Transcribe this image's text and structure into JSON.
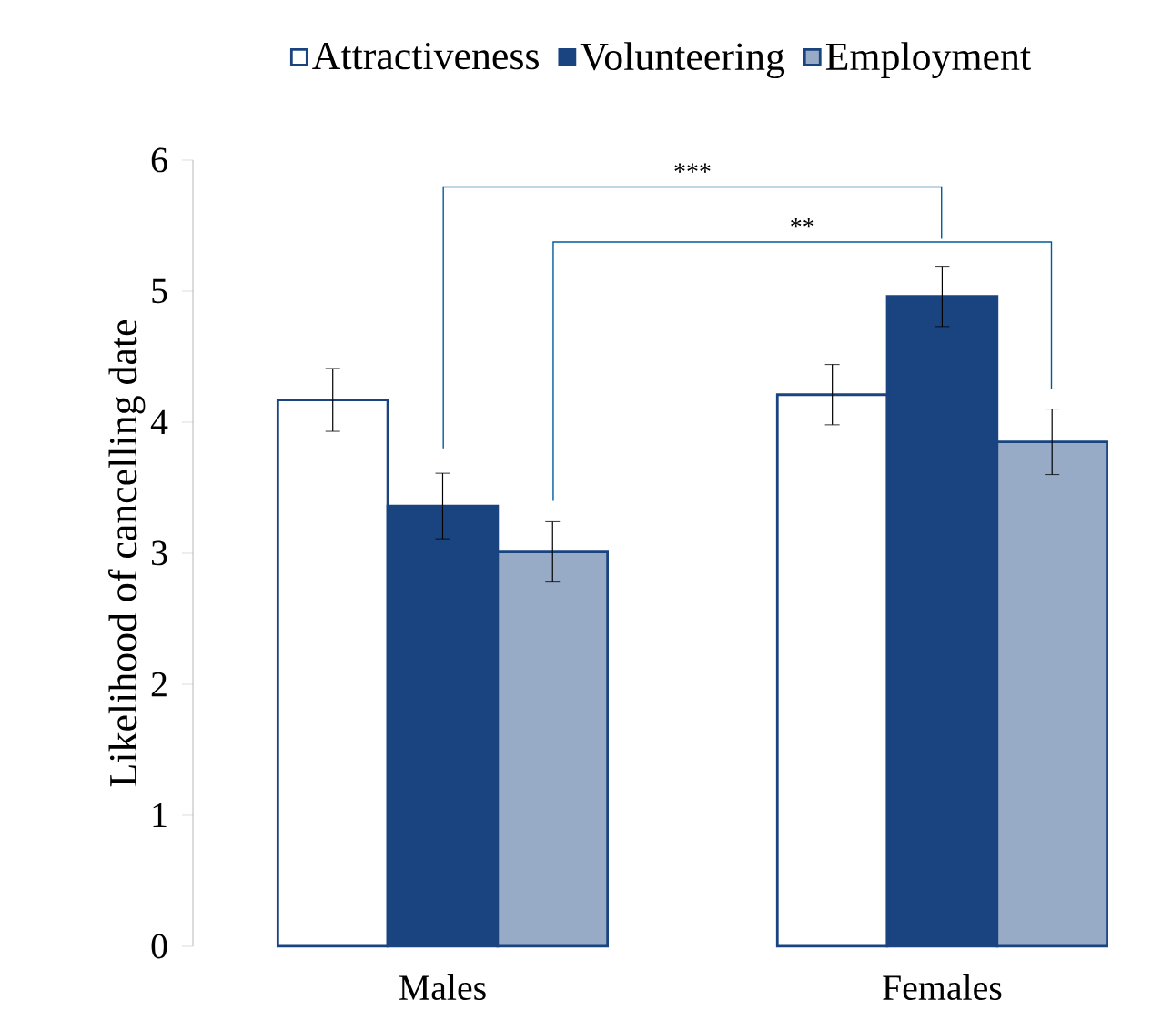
{
  "chart_data": {
    "type": "bar",
    "ylabel": "Likelihood of cancelling date",
    "categories": [
      "Males",
      "Females"
    ],
    "series": [
      {
        "name": "Attractiveness",
        "color": "#1a4480",
        "values": [
          4.17,
          4.21
        ],
        "errors": [
          0.24,
          0.23
        ]
      },
      {
        "name": "Volunteering",
        "color": "#1a4480",
        "values": [
          3.36,
          4.96
        ],
        "errors": [
          0.25,
          0.23
        ]
      },
      {
        "name": "Employment",
        "color": "#1a4480",
        "values": [
          3.01,
          3.85
        ],
        "errors": [
          0.23,
          0.25
        ]
      }
    ],
    "ylim": [
      0,
      6
    ],
    "yticks": [
      0,
      1,
      2,
      3,
      4,
      5,
      6
    ],
    "grid": false,
    "legend": "top",
    "annotations": [
      "***",
      "**"
    ]
  }
}
